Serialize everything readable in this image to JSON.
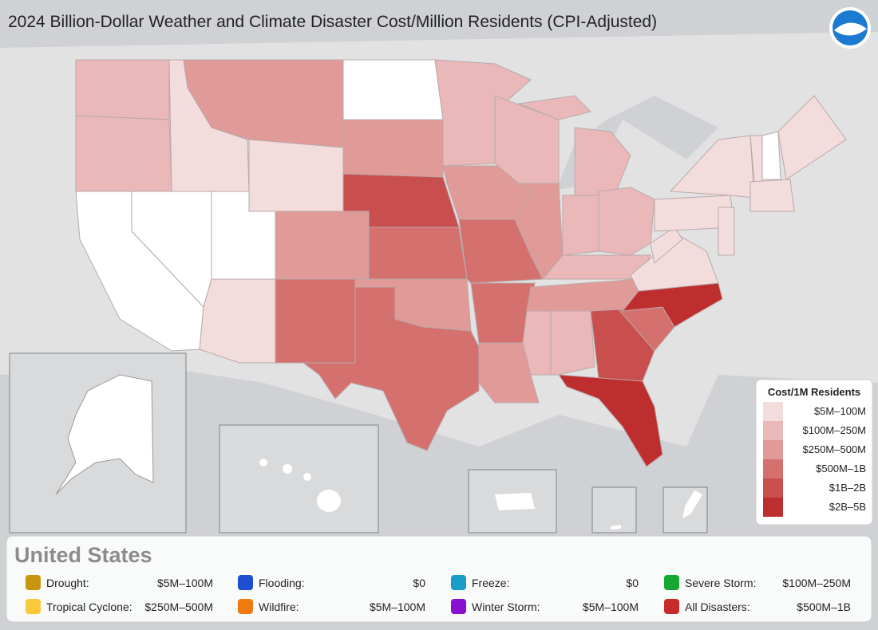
{
  "header": {
    "title": "2024 Billion-Dollar Weather and Climate Disaster Cost/Million Residents (CPI-Adjusted)"
  },
  "legend": {
    "title": "Cost/1M Residents",
    "bins": [
      {
        "label": "$5M–100M",
        "color": "#f3dcdc"
      },
      {
        "label": "$100M–250M",
        "color": "#eab8b8"
      },
      {
        "label": "$250M–500M",
        "color": "#e09a98"
      },
      {
        "label": "$500M–1B",
        "color": "#d4716f"
      },
      {
        "label": "$1B–2B",
        "color": "#c94f4e"
      },
      {
        "label": "$2B–5B",
        "color": "#bf2e2e"
      }
    ]
  },
  "summary": {
    "title": "United States",
    "items": [
      {
        "label": "Drought:",
        "value": "$5M–100M",
        "color": "#c8960e"
      },
      {
        "label": "Flooding:",
        "value": "$0",
        "color": "#1f4fd0"
      },
      {
        "label": "Freeze:",
        "value": "$0",
        "color": "#1a9cc8"
      },
      {
        "label": "Severe Storm:",
        "value": "$100M–250M",
        "color": "#17a832"
      },
      {
        "label": "Tropical Cyclone:",
        "value": "$250M–500M",
        "color": "#f8c93a"
      },
      {
        "label": "Wildfire:",
        "value": "$5M–100M",
        "color": "#f07a10"
      },
      {
        "label": "Winter Storm:",
        "value": "$5M–100M",
        "color": "#8a10d0"
      },
      {
        "label": "All Disasters:",
        "value": "$500M–1B",
        "color": "#c82a2a"
      }
    ]
  }
}
